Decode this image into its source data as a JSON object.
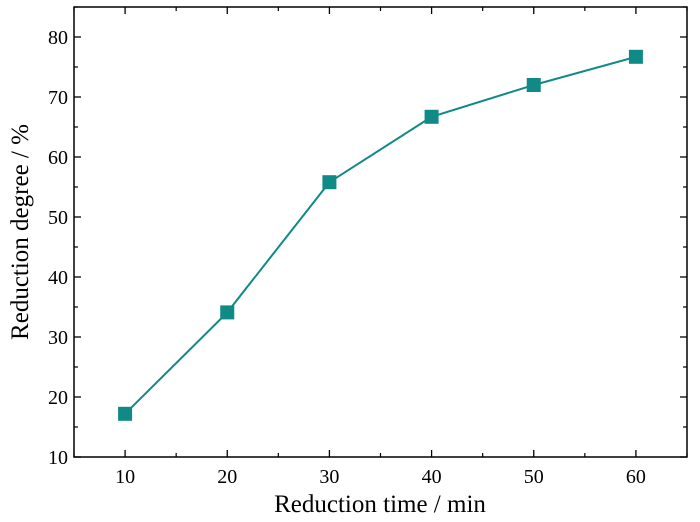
{
  "chart_data": {
    "type": "line",
    "title": "",
    "xlabel": "Reduction time / min",
    "ylabel": "Reduction degree / %",
    "x": [
      10,
      20,
      30,
      40,
      50,
      60
    ],
    "series": [
      {
        "values": [
          17.2,
          34.1,
          55.8,
          66.7,
          72.0,
          76.7
        ],
        "color": "#0f8a86",
        "marker": "square"
      }
    ],
    "xlim": [
      5,
      65
    ],
    "ylim": [
      10,
      85
    ],
    "xticks": [
      10,
      20,
      30,
      40,
      50,
      60
    ],
    "yticks": [
      10,
      20,
      30,
      40,
      50,
      60,
      70,
      80
    ],
    "grid": false,
    "legend": "none"
  }
}
